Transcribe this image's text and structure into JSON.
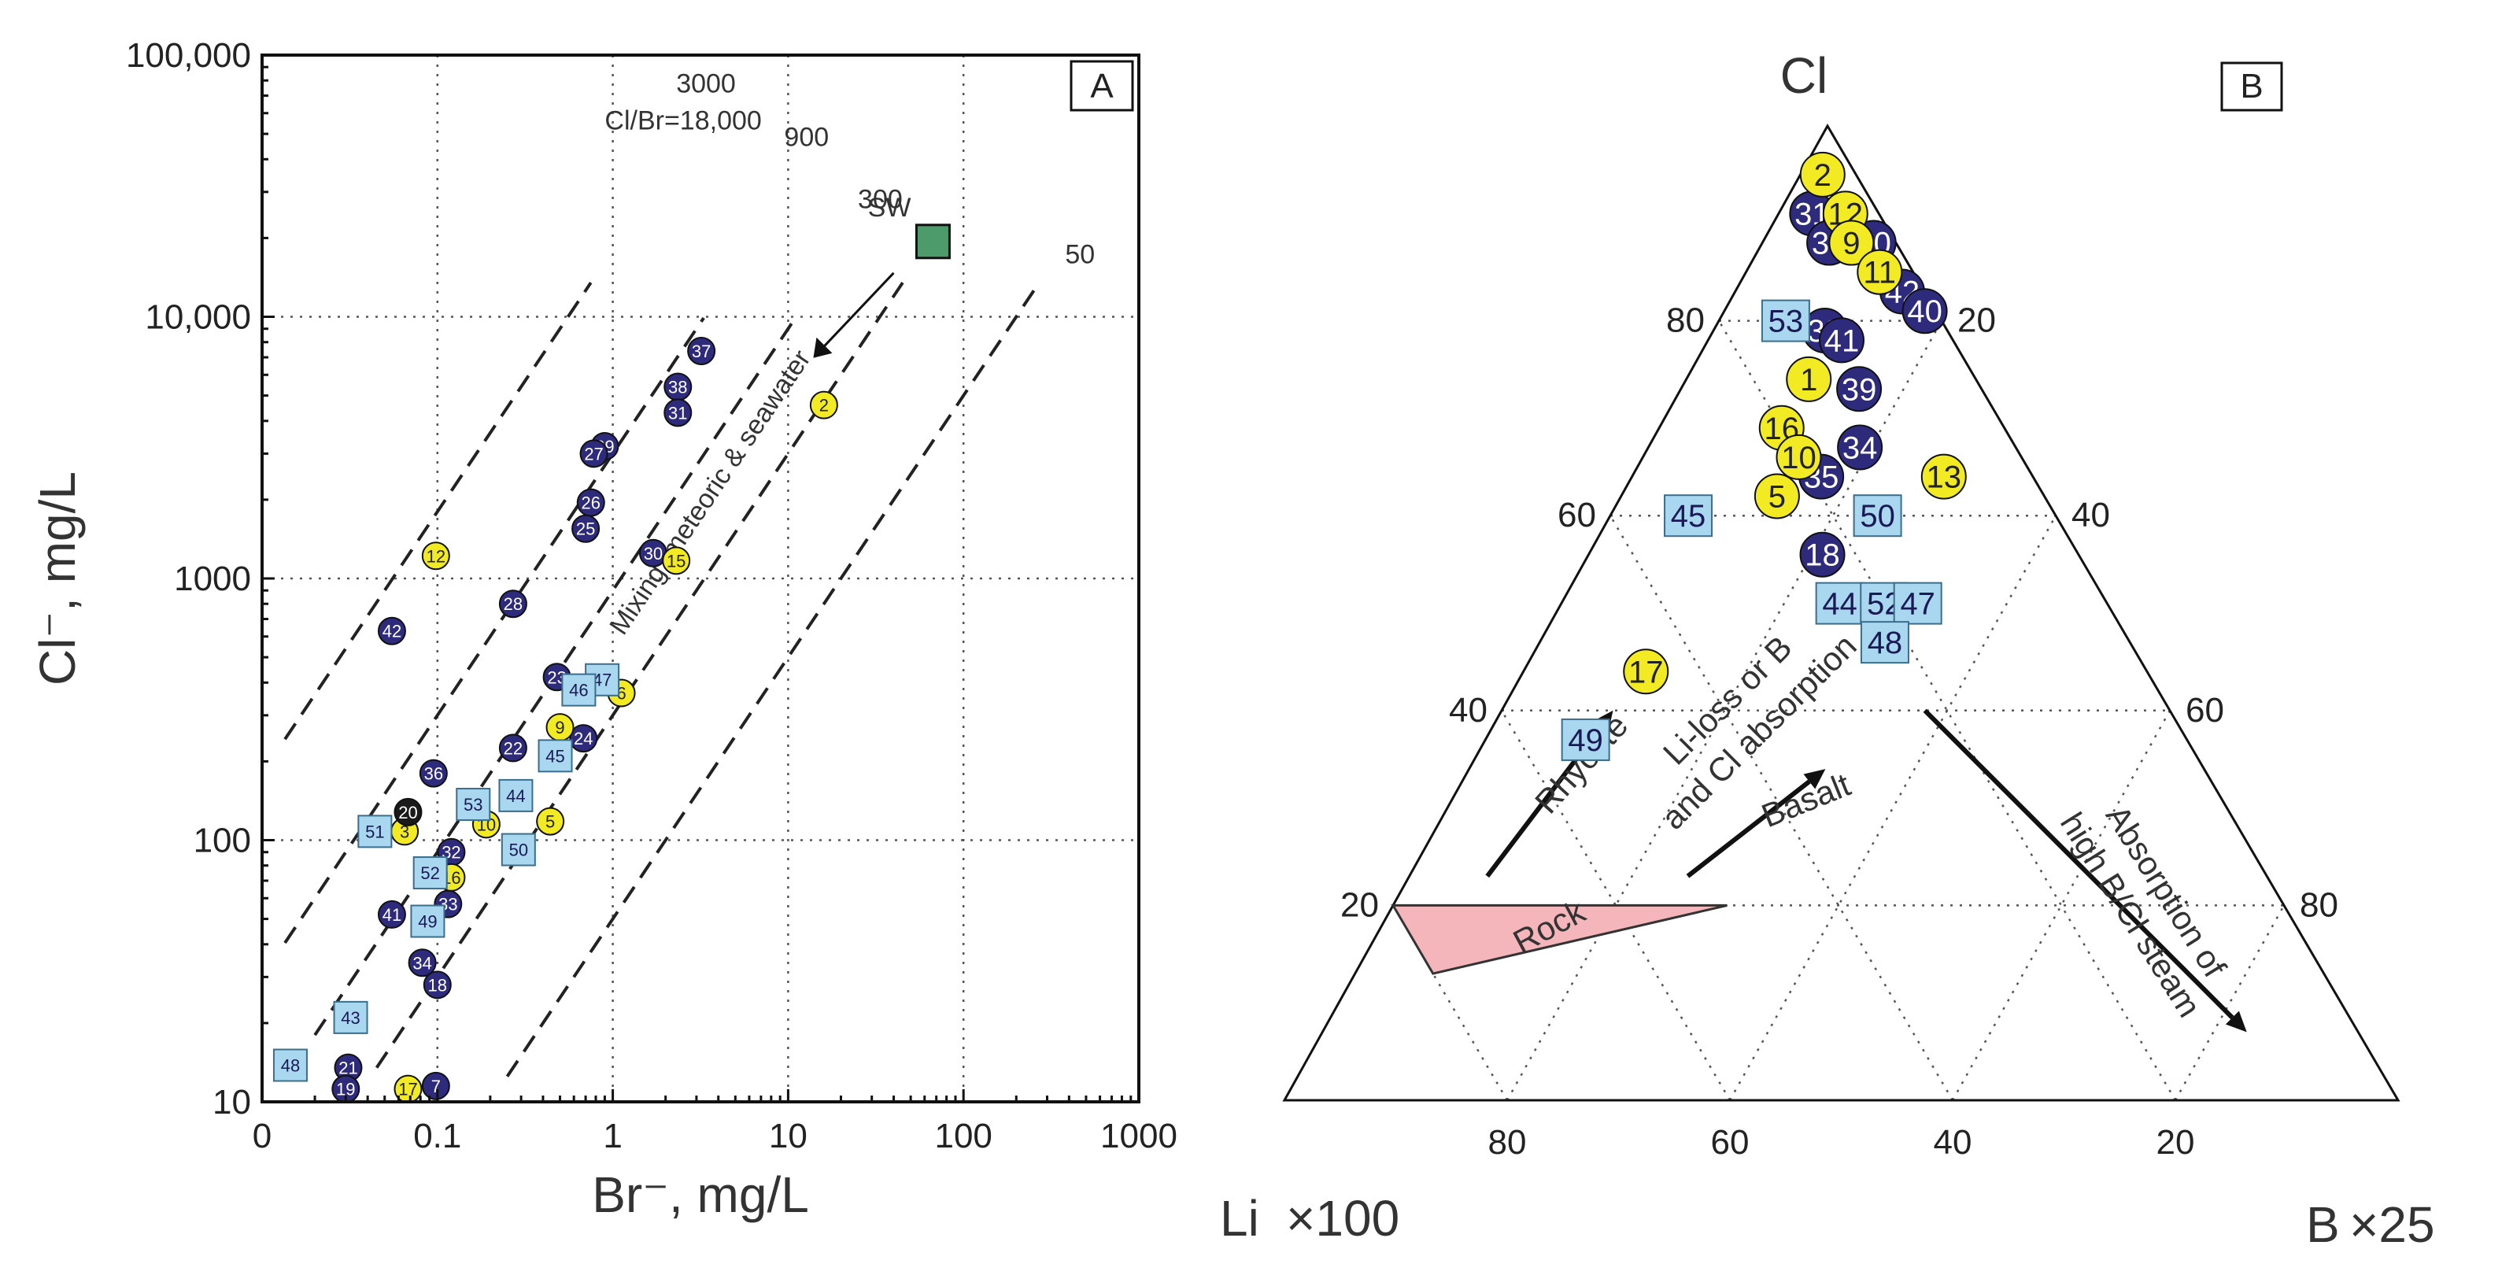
{
  "colors": {
    "navy": "#2e2a7c",
    "yellow": "#f2ea22",
    "light_blue": "#a9d7f0",
    "black": "#1a1a1a",
    "seawater": "#4d9a6a",
    "rock": "#f4b6ba"
  },
  "chart_data": [
    {
      "type": "scatter",
      "panel": "A",
      "xlabel": "Br⁻, mg/L",
      "ylabel": "Cl⁻, mg/L",
      "x_scale": "log",
      "y_scale": "log",
      "xlim": [
        0.01,
        1000
      ],
      "ylim": [
        10,
        100000
      ],
      "x_ticks": [
        {
          "v": 0.01,
          "label": "0"
        },
        {
          "v": 0.1,
          "label": "0.1"
        },
        {
          "v": 1,
          "label": "1"
        },
        {
          "v": 10,
          "label": "10"
        },
        {
          "v": 100,
          "label": "100"
        },
        {
          "v": 1000,
          "label": "1000"
        }
      ],
      "y_ticks": [
        {
          "v": 10,
          "label": "10"
        },
        {
          "v": 100,
          "label": "100"
        },
        {
          "v": 1000,
          "label": "1000"
        },
        {
          "v": 10000,
          "label": "10,000"
        },
        {
          "v": 100000,
          "label": "100,000"
        }
      ],
      "grid": true,
      "ratio_lines": [
        {
          "ratio": 18000,
          "label": "Cl/Br=18,000",
          "x_range": [
            0.0135,
            0.75
          ]
        },
        {
          "ratio": 3000,
          "label": "3000",
          "x_range": [
            0.0135,
            3.3
          ]
        },
        {
          "ratio": 900,
          "label": "900",
          "x_range": [
            0.02,
            11
          ]
        },
        {
          "ratio": 300,
          "label": "300",
          "x_range": [
            0.045,
            45
          ]
        },
        {
          "ratio": 50,
          "label": "50",
          "x_range": [
            0.25,
            270
          ]
        }
      ],
      "seawater": {
        "label": "SW",
        "x": 67,
        "y": 19400
      },
      "annotation": "Mixing: meteoric & seawater",
      "series": [
        {
          "name": "navy",
          "marker": "circle",
          "points": [
            {
              "id": "37",
              "x": 3.2,
              "y": 7400
            },
            {
              "id": "38",
              "x": 2.35,
              "y": 5400
            },
            {
              "id": "31",
              "x": 2.35,
              "y": 4300
            },
            {
              "id": "29",
              "x": 0.9,
              "y": 3200
            },
            {
              "id": "27",
              "x": 0.78,
              "y": 3000
            },
            {
              "id": "26",
              "x": 0.75,
              "y": 1950
            },
            {
              "id": "25",
              "x": 0.7,
              "y": 1550
            },
            {
              "id": "30",
              "x": 1.7,
              "y": 1250
            },
            {
              "id": "28",
              "x": 0.27,
              "y": 800
            },
            {
              "id": "42",
              "x": 0.055,
              "y": 630
            },
            {
              "id": "23",
              "x": 0.48,
              "y": 420
            },
            {
              "id": "24",
              "x": 0.68,
              "y": 245
            },
            {
              "id": "22",
              "x": 0.27,
              "y": 225
            },
            {
              "id": "36",
              "x": 0.095,
              "y": 180
            },
            {
              "id": "32",
              "x": 0.12,
              "y": 90
            },
            {
              "id": "33",
              "x": 0.115,
              "y": 57
            },
            {
              "id": "41",
              "x": 0.055,
              "y": 52
            },
            {
              "id": "34",
              "x": 0.082,
              "y": 34
            },
            {
              "id": "18",
              "x": 0.1,
              "y": 28
            },
            {
              "id": "21",
              "x": 0.031,
              "y": 13.5
            },
            {
              "id": "19",
              "x": 0.03,
              "y": 11.2
            },
            {
              "id": "7",
              "x": 0.098,
              "y": 11.5
            }
          ]
        },
        {
          "name": "yellow",
          "marker": "circle",
          "points": [
            {
              "id": "2",
              "x": 16,
              "y": 4600
            },
            {
              "id": "12",
              "x": 0.098,
              "y": 1220
            },
            {
              "id": "15",
              "x": 2.3,
              "y": 1170
            },
            {
              "id": "6",
              "x": 1.12,
              "y": 365
            },
            {
              "id": "9",
              "x": 0.5,
              "y": 270
            },
            {
              "id": "10",
              "x": 0.19,
              "y": 115
            },
            {
              "id": "5",
              "x": 0.44,
              "y": 118
            },
            {
              "id": "3",
              "x": 0.065,
              "y": 108
            },
            {
              "id": "16",
              "x": 0.12,
              "y": 72
            },
            {
              "id": "17",
              "x": 0.068,
              "y": 11.2
            }
          ]
        },
        {
          "name": "black",
          "marker": "circle",
          "points": [
            {
              "id": "20",
              "x": 0.068,
              "y": 128
            }
          ]
        },
        {
          "name": "light blue",
          "marker": "square",
          "points": [
            {
              "id": "47",
              "x": 0.87,
              "y": 410
            },
            {
              "id": "46",
              "x": 0.64,
              "y": 375
            },
            {
              "id": "45",
              "x": 0.47,
              "y": 210
            },
            {
              "id": "44",
              "x": 0.28,
              "y": 148
            },
            {
              "id": "53",
              "x": 0.16,
              "y": 137
            },
            {
              "id": "50",
              "x": 0.29,
              "y": 92
            },
            {
              "id": "51",
              "x": 0.044,
              "y": 108
            },
            {
              "id": "52",
              "x": 0.091,
              "y": 75
            },
            {
              "id": "49",
              "x": 0.088,
              "y": 49
            },
            {
              "id": "43",
              "x": 0.032,
              "y": 21
            },
            {
              "id": "48",
              "x": 0.0145,
              "y": 13.8
            }
          ]
        }
      ]
    },
    {
      "type": "ternary",
      "panel": "B",
      "apex_top": "Cl",
      "apex_left": "Li",
      "apex_left_factor": "×100",
      "apex_right": "B",
      "apex_right_factor": "×25",
      "grid_step": 20,
      "left_ticks": [
        "20",
        "40",
        "60",
        "80"
      ],
      "right_ticks": [
        "20",
        "40",
        "60",
        "80"
      ],
      "bottom_ticks": [
        "80",
        "60",
        "40",
        "20"
      ],
      "labels": {
        "rock": "Rock",
        "rhyolite": "Rhyolite",
        "basalt": "Basalt",
        "li_loss_1": "Li-loss or B",
        "li_loss_2": "and Cl absorption",
        "absorption_1": "Absorption of",
        "absorption_2": "high B/Cl steam"
      },
      "rock_field": [
        {
          "cl": 20,
          "li": 80,
          "b": 0
        },
        {
          "cl": 13,
          "li": 80,
          "b": 7
        },
        {
          "cl": 20,
          "li": 50,
          "b": 30
        }
      ],
      "arrows": [
        {
          "name": "rhyolite",
          "from": {
            "cl": 23,
            "li": 70,
            "b": 7
          },
          "to": {
            "cl": 40,
            "li": 50,
            "b": 10
          }
        },
        {
          "name": "basalt",
          "from": {
            "cl": 23,
            "li": 52,
            "b": 25
          },
          "to": {
            "cl": 34,
            "li": 34,
            "b": 32
          }
        },
        {
          "name": "absorption",
          "from": {
            "cl": 40,
            "li": 22,
            "b": 38
          },
          "to": {
            "cl": 7,
            "li": 10,
            "b": 83
          }
        }
      ],
      "series": [
        {
          "name": "navy",
          "marker": "circle",
          "points": [
            {
              "id": "31",
              "cl": 91,
              "li": 6,
              "b": 3
            },
            {
              "id": "38",
              "cl": 88,
              "li": 6,
              "b": 6
            },
            {
              "id": "30",
              "cl": 88,
              "li": 2,
              "b": 10
            },
            {
              "id": "42",
              "cl": 83,
              "li": 2,
              "b": 15
            },
            {
              "id": "40",
              "cl": 81,
              "li": 1,
              "b": 18
            },
            {
              "id": "32",
              "cl": 79,
              "li": 11,
              "b": 10
            },
            {
              "id": "41",
              "cl": 78,
              "li": 10,
              "b": 12
            },
            {
              "id": "39",
              "cl": 73,
              "li": 11,
              "b": 16
            },
            {
              "id": "34",
              "cl": 67,
              "li": 14,
              "b": 19
            },
            {
              "id": "35",
              "cl": 64,
              "li": 19,
              "b": 17
            },
            {
              "id": "18",
              "cl": 56,
              "li": 23,
              "b": 21
            }
          ]
        },
        {
          "name": "yellow",
          "marker": "circle",
          "points": [
            {
              "id": "2",
              "cl": 95,
              "li": 3,
              "b": 2
            },
            {
              "id": "12",
              "cl": 91,
              "li": 3,
              "b": 6
            },
            {
              "id": "9",
              "cl": 88,
              "li": 4,
              "b": 8
            },
            {
              "id": "11",
              "cl": 85,
              "li": 3,
              "b": 12
            },
            {
              "id": "1",
              "cl": 74,
              "li": 15,
              "b": 11
            },
            {
              "id": "16",
              "cl": 69,
              "li": 20,
              "b": 11
            },
            {
              "id": "10",
              "cl": 66,
              "li": 20,
              "b": 14
            },
            {
              "id": "5",
              "cl": 62,
              "li": 24,
              "b": 14
            },
            {
              "id": "13",
              "cl": 64,
              "li": 8,
              "b": 28
            },
            {
              "id": "17",
              "cl": 44,
              "li": 45,
              "b": 11
            }
          ]
        },
        {
          "name": "light blue",
          "marker": "square",
          "points": [
            {
              "id": "53",
              "cl": 80,
              "li": 14,
              "b": 6
            },
            {
              "id": "45",
              "cl": 60,
              "li": 33,
              "b": 7
            },
            {
              "id": "50",
              "cl": 60,
              "li": 16,
              "b": 24
            },
            {
              "id": "44",
              "cl": 51,
              "li": 24,
              "b": 25
            },
            {
              "id": "52",
              "cl": 51,
              "li": 20,
              "b": 29
            },
            {
              "id": "47",
              "cl": 51,
              "li": 17,
              "b": 32
            },
            {
              "id": "48",
              "cl": 47,
              "li": 22,
              "b": 31
            },
            {
              "id": "49",
              "cl": 37,
              "li": 54,
              "b": 9
            }
          ]
        }
      ]
    }
  ]
}
